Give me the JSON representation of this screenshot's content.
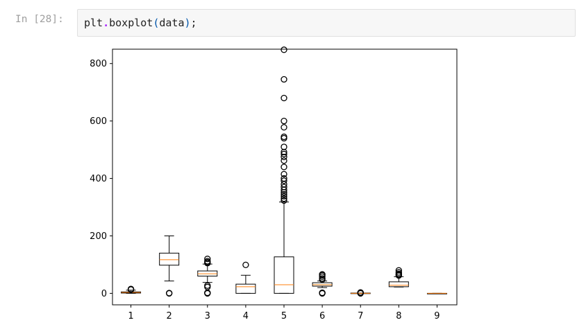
{
  "cell": {
    "prompt": "In [28]:",
    "code": {
      "fn": "plt",
      "dot": ".",
      "method": "boxplot",
      "open_paren": "(",
      "arg": "data",
      "close_paren": ")",
      "semicolon": ";"
    }
  },
  "colors": {
    "median": "#ff7f0e",
    "box": "#000000"
  },
  "chart_data": {
    "type": "boxplot",
    "categories": [
      "1",
      "2",
      "3",
      "4",
      "5",
      "6",
      "7",
      "8",
      "9"
    ],
    "ylim": [
      -40,
      850
    ],
    "yticks": [
      0,
      200,
      400,
      600,
      800
    ],
    "grid": false,
    "boxes": [
      {
        "whislo": 0,
        "q1": 1,
        "med": 3,
        "q3": 5,
        "whishi": 11,
        "fliers": [
          13,
          14,
          15
        ]
      },
      {
        "whislo": 43,
        "q1": 98,
        "med": 117,
        "q3": 140,
        "whishi": 200,
        "fliers": [
          0,
          1
        ]
      },
      {
        "whislo": 38,
        "q1": 60,
        "med": 68,
        "q3": 78,
        "whishi": 102,
        "fliers": [
          0,
          1,
          2,
          22,
          27,
          105,
          108,
          112,
          120
        ]
      },
      {
        "whislo": 0,
        "q1": 0,
        "med": 23,
        "q3": 32,
        "whishi": 63,
        "fliers": [
          99
        ]
      },
      {
        "whislo": 0,
        "q1": 0,
        "med": 30,
        "q3": 127,
        "whishi": 318,
        "fliers": [
          323,
          330,
          338,
          345,
          352,
          360,
          370,
          380,
          392,
          400,
          415,
          440,
          462,
          475,
          485,
          492,
          510,
          540,
          545,
          578,
          600,
          680,
          745,
          848
        ]
      },
      {
        "whislo": 20,
        "q1": 25,
        "med": 30,
        "q3": 37,
        "whishi": 43,
        "fliers": [
          0,
          1,
          2,
          48,
          52,
          58,
          63,
          66
        ]
      },
      {
        "whislo": 0,
        "q1": 0,
        "med": 0,
        "q3": 1,
        "whishi": 1,
        "fliers": [
          0,
          1,
          2,
          3
        ]
      },
      {
        "whislo": 22,
        "q1": 23,
        "med": 28,
        "q3": 40,
        "whishi": 58,
        "fliers": [
          62,
          65,
          68,
          73,
          80
        ]
      },
      {
        "whislo": 0,
        "q1": 0,
        "med": 0,
        "q3": 0,
        "whishi": 0,
        "fliers": []
      }
    ]
  }
}
